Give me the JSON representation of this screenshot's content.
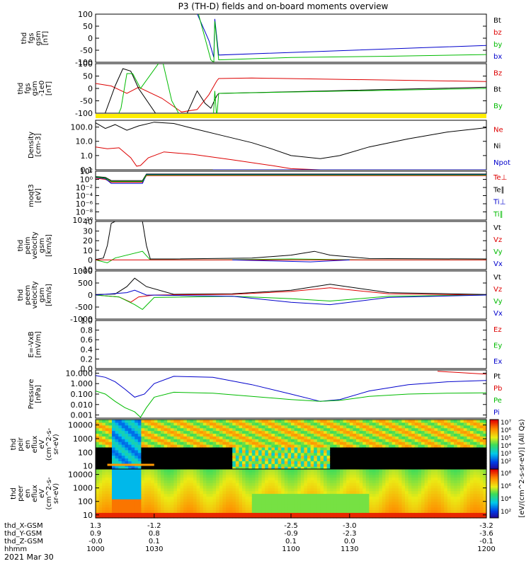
{
  "figure": {
    "title": "P3 (TH-D) fields and on-board moments overview",
    "date": "2021 Mar 30"
  },
  "chart_data": [
    {
      "type": "line",
      "id": "fgs",
      "ylabel": [
        "thd",
        "fgs",
        "gsm",
        "[nT]"
      ],
      "ylim": [
        -100,
        100
      ],
      "yticks": [
        "100",
        "50",
        "0",
        "-50",
        "-100"
      ],
      "legend": [
        {
          "label": "Bt",
          "color": "#000000"
        },
        {
          "label": "bz",
          "color": "#dd0000"
        },
        {
          "label": "by",
          "color": "#00bb00"
        },
        {
          "label": "bx",
          "color": "#0000cc"
        }
      ],
      "series": [
        {
          "name": "bx",
          "color": "#0000cc",
          "x": [
            1000,
            1013.9,
            1014,
            1014.1,
            1036,
            1051,
            1058,
            1060.5,
            1061,
            1063,
            1200
          ],
          "y": [
            null,
            null,
            120,
            null,
            null,
            120,
            -10,
            -80,
            80,
            -70,
            -30
          ]
        },
        {
          "name": "by",
          "color": "#00bb00",
          "x": [
            1052,
            1056,
            1059,
            1060.5,
            1061,
            1063,
            1100,
            1150,
            1200
          ],
          "y": [
            120,
            0,
            -90,
            -100,
            70,
            -90,
            -80,
            -75,
            -68
          ]
        },
        {
          "name": "Bt",
          "color": "#000000",
          "x": [
            1058,
            1062,
            1200
          ],
          "y": [
            -100,
            -100,
            -100
          ]
        }
      ]
    },
    {
      "type": "line",
      "id": "fgs-p5",
      "ylabel": [
        "thd",
        "fgs",
        "gsm",
        "-1e0",
        "[nT]"
      ],
      "ylim": [
        -100,
        100
      ],
      "yticks": [
        "100",
        "50",
        "0",
        "-50",
        "-100"
      ],
      "legend": [
        {
          "label": "Bz",
          "color": "#dd0000"
        },
        {
          "label": "Bt",
          "color": "#000000"
        },
        {
          "label": "By",
          "color": "#00bb00"
        }
      ],
      "series": [
        {
          "name": "Bz",
          "color": "#dd0000",
          "x": [
            1000,
            1008,
            1016,
            1022,
            1034,
            1044,
            1052,
            1058,
            1062,
            1063,
            1080,
            1200
          ],
          "y": [
            20,
            10,
            -20,
            5,
            -40,
            -95,
            -85,
            -25,
            30,
            40,
            42,
            28
          ]
        },
        {
          "name": "Bt",
          "color": "#000000",
          "x": [
            1000,
            1004,
            1010,
            1014,
            1018,
            1022,
            1035,
            1044,
            1052,
            1056,
            1059,
            1062,
            1063,
            1200
          ],
          "y": [
            -150,
            -120,
            10,
            80,
            70,
            0,
            -150,
            -150,
            -10,
            -60,
            -80,
            -30,
            -20,
            5
          ]
        },
        {
          "name": "By",
          "color": "#00bb00",
          "x": [
            1009,
            1013,
            1016,
            1019,
            1023,
            1034,
            1039,
            1046,
            1060,
            1061,
            1062,
            1063,
            1200
          ],
          "y": [
            -150,
            -80,
            60,
            60,
            0,
            120,
            -50,
            -150,
            -150,
            -10,
            -120,
            -20,
            0
          ]
        }
      ]
    },
    {
      "type": "line",
      "id": "density",
      "ylabel": [
        "Density",
        "[cm-3]"
      ],
      "yscale": "log",
      "ylim": [
        0.1,
        300
      ],
      "yticks": [
        "100.0",
        "10.0",
        "1.0",
        "0.1"
      ],
      "legend": [
        {
          "label": "Ne",
          "color": "#dd0000"
        },
        {
          "label": "Ni",
          "color": "#000000"
        },
        {
          "label": "Npot",
          "color": "#0000cc"
        }
      ],
      "series": [
        {
          "name": "Ni",
          "color": "#000000",
          "x": [
            1000,
            1005,
            1010,
            1016,
            1022,
            1030,
            1040,
            1050,
            1065,
            1080,
            1090,
            1100,
            1115,
            1125,
            1140,
            1160,
            1180,
            1200
          ],
          "y": [
            200,
            80,
            150,
            60,
            120,
            220,
            180,
            80,
            25,
            8,
            3,
            1,
            0.6,
            1,
            4,
            15,
            45,
            90
          ]
        },
        {
          "name": "Ne",
          "color": "#dd0000",
          "x": [
            1000,
            1006,
            1012,
            1018,
            1021,
            1023,
            1027,
            1035,
            1050,
            1070,
            1090,
            1100,
            1115,
            1130,
            1150,
            1170,
            1200
          ],
          "y": [
            4,
            3,
            3.5,
            0.7,
            0.18,
            0.2,
            0.7,
            1.8,
            1.2,
            0.5,
            0.2,
            0.12,
            0.1,
            0.1,
            0.1,
            0.1,
            0.1
          ]
        },
        {
          "name": "Npot",
          "color": "#0000cc",
          "x": [
            1060,
            1100,
            1150,
            1200
          ],
          "y": [
            0.1,
            0.1,
            0.1,
            0.1
          ]
        }
      ]
    },
    {
      "type": "line",
      "id": "moqt3",
      "ylabel": [
        "moqt3",
        "[eV]"
      ],
      "yscale": "log",
      "ylim": [
        1e-10,
        100
      ],
      "yticks": [
        "10²",
        "10⁰",
        "10⁻²",
        "10⁻⁴",
        "10⁻⁶",
        "10⁻⁸",
        "10⁻¹⁰"
      ],
      "legend": [
        {
          "label": "Te⊥",
          "color": "#dd0000"
        },
        {
          "label": "Te∥",
          "color": "#000000"
        },
        {
          "label": "Ti⊥",
          "color": "#0000cc"
        },
        {
          "label": "Ti∥",
          "color": "#00bb00"
        }
      ],
      "series": [
        {
          "name": "Te∥",
          "color": "#000000",
          "x": [
            1000,
            1005,
            1008,
            1024,
            1026,
            1200
          ],
          "y": [
            5,
            3,
            0.5,
            0.5,
            20,
            20
          ]
        },
        {
          "name": "Te⊥",
          "color": "#dd0000",
          "x": [
            1000,
            1005,
            1008,
            1024,
            1026,
            1200
          ],
          "y": [
            2,
            1,
            0.2,
            0.2,
            8,
            8
          ]
        },
        {
          "name": "Ti⊥",
          "color": "#0000cc",
          "x": [
            1000,
            1005,
            1008,
            1024,
            1026,
            1200
          ],
          "y": [
            3,
            1.5,
            0.1,
            0.1,
            15,
            15
          ]
        },
        {
          "name": "Ti∥",
          "color": "#00bb00",
          "x": [
            1000,
            1005,
            1008,
            1024,
            1026,
            1200
          ],
          "y": [
            4,
            2,
            0.3,
            0.3,
            12,
            12
          ]
        }
      ]
    },
    {
      "type": "line",
      "id": "peim-velocity",
      "ylabel": [
        "thd",
        "peim",
        "velocity",
        "gsm",
        "[km/s]"
      ],
      "ylim": [
        -10,
        40
      ],
      "yticks": [
        "40",
        "30",
        "20",
        "10",
        "0",
        "-10"
      ],
      "legend": [
        {
          "label": "Vt",
          "color": "#000000"
        },
        {
          "label": "Vz",
          "color": "#dd0000"
        },
        {
          "label": "Vy",
          "color": "#00bb00"
        },
        {
          "label": "Vx",
          "color": "#0000cc"
        }
      ],
      "series": [
        {
          "name": "Vt",
          "color": "#000000",
          "x": [
            1000,
            1004,
            1006,
            1008,
            1010,
            1024,
            1026,
            1028,
            1040,
            1080,
            1100,
            1112,
            1120,
            1140,
            1200
          ],
          "y": [
            0.5,
            2,
            15,
            38,
            40,
            40,
            15,
            1,
            1,
            2,
            5,
            9,
            5,
            1.5,
            1
          ]
        },
        {
          "name": "Vy",
          "color": "#00bb00",
          "x": [
            1000,
            1006,
            1010,
            1024,
            1028,
            1060,
            1100,
            1140,
            1200
          ],
          "y": [
            0,
            -3,
            2,
            9,
            0,
            0,
            1,
            0,
            0
          ]
        },
        {
          "name": "Vz",
          "color": "#dd0000",
          "x": [
            1000,
            1100,
            1200
          ],
          "y": [
            0,
            0,
            0
          ]
        },
        {
          "name": "Vx",
          "color": "#0000cc",
          "x": [
            1070,
            1090,
            1110,
            1130
          ],
          "y": [
            0,
            -1,
            -2,
            0
          ]
        }
      ]
    },
    {
      "type": "line",
      "id": "peem-velocity",
      "ylabel": [
        "thd",
        "peem",
        "velocity",
        "gsm",
        "[km/s]"
      ],
      "ylim": [
        -1000,
        1000
      ],
      "yticks": [
        "1000",
        "500",
        "0",
        "-500",
        "-1000"
      ],
      "legend": [
        {
          "label": "Vt",
          "color": "#000000"
        },
        {
          "label": "Vz",
          "color": "#dd0000"
        },
        {
          "label": "Vy",
          "color": "#00bb00"
        },
        {
          "label": "Vx",
          "color": "#0000cc"
        }
      ],
      "series": [
        {
          "name": "Vt",
          "color": "#000000",
          "x": [
            1000,
            1010,
            1016,
            1020,
            1026,
            1040,
            1070,
            1100,
            1120,
            1150,
            1200
          ],
          "y": [
            20,
            40,
            350,
            700,
            350,
            30,
            50,
            200,
            450,
            100,
            20
          ]
        },
        {
          "name": "Vz",
          "color": "#dd0000",
          "x": [
            1000,
            1012,
            1018,
            1022,
            1030,
            1070,
            1100,
            1120,
            1150,
            1200
          ],
          "y": [
            0,
            -80,
            -300,
            -80,
            0,
            30,
            150,
            300,
            50,
            0
          ]
        },
        {
          "name": "Vy",
          "color": "#00bb00",
          "x": [
            1000,
            1012,
            1020,
            1024,
            1030,
            1070,
            1100,
            1120,
            1150,
            1200
          ],
          "y": [
            0,
            -80,
            -400,
            -600,
            -100,
            -50,
            -150,
            -250,
            -50,
            0
          ]
        },
        {
          "name": "Vx",
          "color": "#0000cc",
          "x": [
            1000,
            1016,
            1020,
            1026,
            1070,
            1100,
            1120,
            1150,
            1200
          ],
          "y": [
            0,
            100,
            200,
            0,
            -50,
            -300,
            -400,
            -100,
            0
          ]
        }
      ]
    },
    {
      "type": "line",
      "id": "efield",
      "ylabel": [
        "E=-VxB",
        "[mV/m]"
      ],
      "ylim": [
        0,
        1
      ],
      "yticks": [
        "1.0",
        "0.8",
        "0.6",
        "0.4",
        "0.2",
        "0.0"
      ],
      "legend": [
        {
          "label": "Ez",
          "color": "#dd0000"
        },
        {
          "label": "Ey",
          "color": "#00bb00"
        },
        {
          "label": "Ex",
          "color": "#0000cc"
        }
      ],
      "series": []
    },
    {
      "type": "line",
      "id": "pressure",
      "ylabel": [
        "Pressure",
        "[nPa]"
      ],
      "yscale": "log",
      "ylim": [
        0.0005,
        20
      ],
      "yticks": [
        "10.000",
        "1.000",
        "0.100",
        "0.010",
        "0.001"
      ],
      "legend": [
        {
          "label": "Pt",
          "color": "#000000"
        },
        {
          "label": "Pb",
          "color": "#dd0000"
        },
        {
          "label": "Pe",
          "color": "#00bb00"
        },
        {
          "label": "Pi",
          "color": "#0000cc"
        }
      ],
      "series": [
        {
          "name": "Pi",
          "color": "#0000cc",
          "x": [
            1000,
            1005,
            1010,
            1015,
            1020,
            1025,
            1030,
            1040,
            1060,
            1080,
            1100,
            1115,
            1125,
            1140,
            1160,
            1180,
            1200
          ],
          "y": [
            6,
            4,
            1.5,
            0.3,
            0.05,
            0.1,
            1,
            5,
            4,
            0.8,
            0.1,
            0.02,
            0.03,
            0.2,
            0.8,
            1.5,
            2
          ]
        },
        {
          "name": "Pe",
          "color": "#00bb00",
          "x": [
            1000,
            1005,
            1010,
            1015,
            1020,
            1023,
            1026,
            1030,
            1040,
            1060,
            1080,
            1100,
            1115,
            1125,
            1140,
            1160,
            1180,
            1200
          ],
          "y": [
            0.2,
            0.1,
            0.02,
            0.005,
            0.002,
            0.0006,
            0.005,
            0.05,
            0.15,
            0.12,
            0.06,
            0.03,
            0.02,
            0.025,
            0.06,
            0.1,
            0.12,
            0.13
          ]
        },
        {
          "name": "Pb",
          "color": "#dd0000",
          "x": [
            1175,
            1200
          ],
          "y": [
            15,
            8
          ]
        }
      ]
    },
    {
      "type": "heatmap",
      "id": "peir",
      "ylabel": [
        "thd",
        "peir",
        "en",
        "eflux",
        "eV",
        "(cm^2-s-",
        "sr-eV)"
      ],
      "yscale": "log",
      "ylim": [
        6,
        25000
      ],
      "yticks": [
        "10000",
        "1000",
        "100",
        "10"
      ]
    },
    {
      "type": "heatmap",
      "id": "peer",
      "ylabel": [
        "thd",
        "peer",
        "en",
        "eflux",
        "eV",
        "(cm^2-s-",
        "sr-eV)"
      ],
      "yscale": "log",
      "ylim": [
        6,
        25000
      ],
      "yticks": [
        "10000",
        "1000",
        "100",
        "10"
      ]
    }
  ],
  "colorbar": {
    "label": "[eV/(cm^2-s-sr-eV)] (All Qs)",
    "ticks": [
      "10⁷",
      "10⁶",
      "10⁵",
      "10⁴",
      "10³",
      "10²",
      "10⁸",
      "10⁶",
      "10⁴",
      "10²"
    ]
  },
  "xaxis": {
    "xlim": [
      1000,
      1200
    ],
    "tick_x": [
      1000,
      1030,
      1100,
      1130,
      1200
    ],
    "rows": [
      {
        "label": "thd_X-GSM",
        "values": [
          "1.3",
          "-1.2",
          "-2.5",
          "-3.0",
          "-3.2"
        ]
      },
      {
        "label": "thd_Y-GSM",
        "values": [
          "0.9",
          "0.8",
          "-0.9",
          "-2.3",
          "-3.6"
        ]
      },
      {
        "label": "thd_Z-GSM",
        "values": [
          "-0.0",
          "0.1",
          "0.1",
          "0.0",
          "-0.1"
        ]
      },
      {
        "label": "hhmm",
        "values": [
          "1000",
          "1030",
          "1100",
          "1130",
          "1200"
        ]
      }
    ]
  }
}
